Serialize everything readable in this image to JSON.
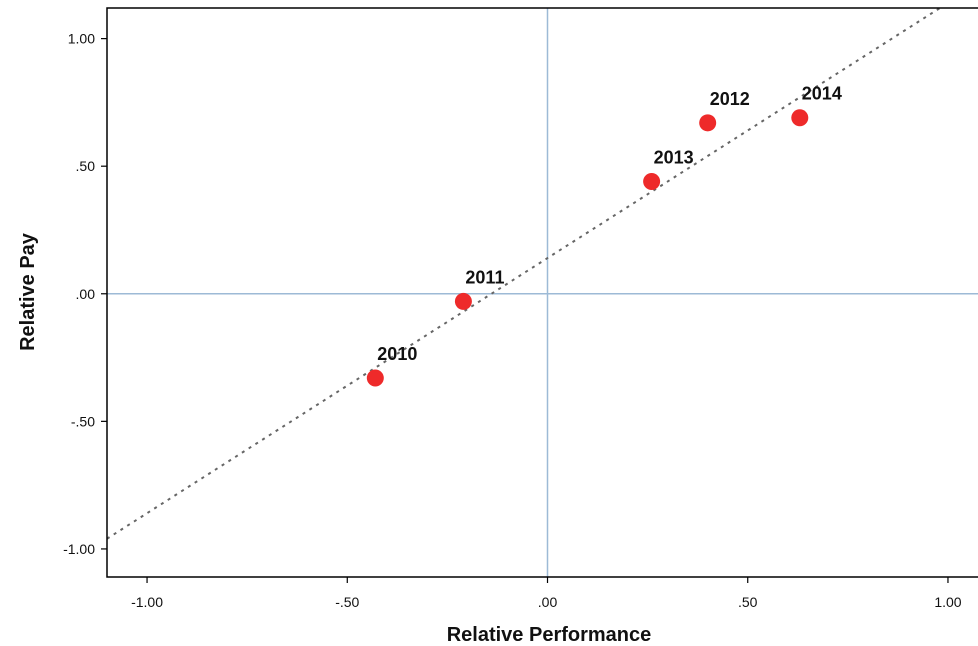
{
  "chart_data": {
    "type": "scatter",
    "title": "",
    "xlabel": "Relative Performance",
    "ylabel": "Relative Pay",
    "xlim": [
      -1.1,
      1.08
    ],
    "ylim": [
      -1.11,
      1.12
    ],
    "x_ticks": [
      -1.0,
      -0.5,
      0.0,
      0.5,
      1.0
    ],
    "x_tick_labels": [
      "-1.00",
      "-.50",
      ".00",
      ".50",
      "1.00"
    ],
    "y_ticks": [
      1.0,
      0.5,
      0.0,
      -0.5,
      -1.0
    ],
    "y_tick_labels": [
      "1.00",
      ".50",
      ".00",
      "-.50",
      "-1.00"
    ],
    "points": [
      {
        "label": "2010",
        "x": -0.43,
        "y": -0.33
      },
      {
        "label": "2011",
        "x": -0.21,
        "y": -0.03
      },
      {
        "label": "2012",
        "x": 0.4,
        "y": 0.67
      },
      {
        "label": "2013",
        "x": 0.26,
        "y": 0.44
      },
      {
        "label": "2014",
        "x": 0.63,
        "y": 0.69
      }
    ],
    "reference_lines": {
      "x": 0.0,
      "y": 0.0
    },
    "fit_line": {
      "style": "dotted",
      "slope": 1.0,
      "intercept": 0.14
    },
    "grid": false,
    "legend": "none",
    "colors": {
      "point": "#ee2a2a",
      "reference_line": "#9dbad6",
      "fit_line": "#666666",
      "axis": "#000000"
    }
  }
}
